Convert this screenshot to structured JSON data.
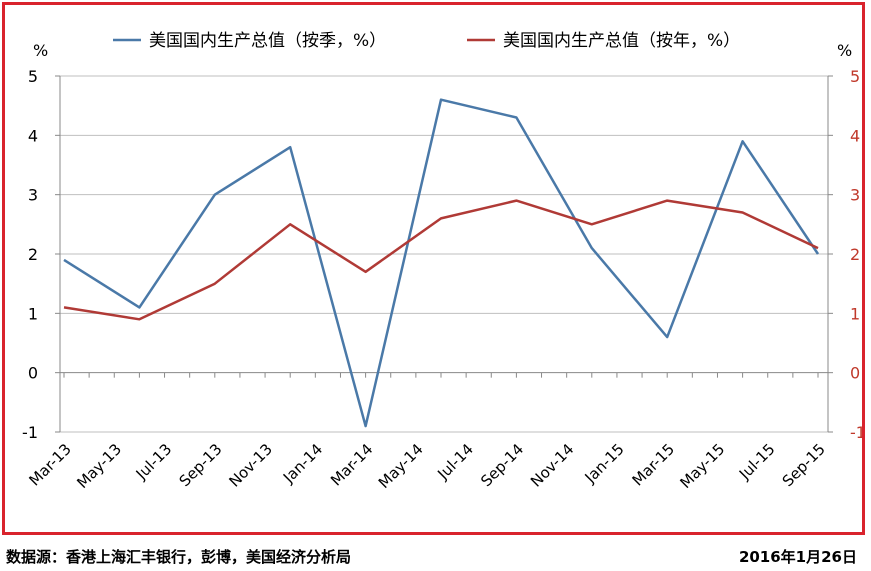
{
  "footer": {
    "source": "数据源：香港上海汇丰银行，彭博，美国经济分析局",
    "date": "2016年1月26日"
  },
  "colors": {
    "frame": "#d9232d",
    "series_qoq": "#4a79a8",
    "series_yoy": "#b03a36",
    "right_axis_labels": "#c0392b",
    "grid": "#bfbfbf"
  },
  "chart_data": {
    "type": "line",
    "title": "",
    "x": [
      "Mar-13",
      "Jun-13",
      "Sep-13",
      "Dec-13",
      "Mar-14",
      "Jun-14",
      "Sep-14",
      "Dec-14",
      "Mar-15",
      "Jun-15",
      "Sep-15"
    ],
    "x_tick_labels": [
      "Mar-13",
      "May-13",
      "Jul-13",
      "Sep-13",
      "Nov-13",
      "Jan-14",
      "Mar-14",
      "May-14",
      "Jul-14",
      "Sep-14",
      "Nov-14",
      "Jan-15",
      "Mar-15",
      "May-15",
      "Jul-15",
      "Sep-15"
    ],
    "series": [
      {
        "name": "美国国内生产总值（按季，%）",
        "values": [
          1.9,
          1.1,
          3.0,
          3.8,
          -0.9,
          4.6,
          4.3,
          2.1,
          0.6,
          3.9,
          2.0
        ]
      },
      {
        "name": "美国国内生产总值（按年，%）",
        "values": [
          1.1,
          0.9,
          1.5,
          2.5,
          1.7,
          2.6,
          2.9,
          2.5,
          2.9,
          2.7,
          2.1
        ]
      }
    ],
    "ylabel_left": "%",
    "ylabel_right": "%",
    "ylim": [
      -1,
      5
    ],
    "yticks": [
      -1,
      0,
      1,
      2,
      3,
      4,
      5
    ],
    "grid": true,
    "legend_position": "top"
  }
}
